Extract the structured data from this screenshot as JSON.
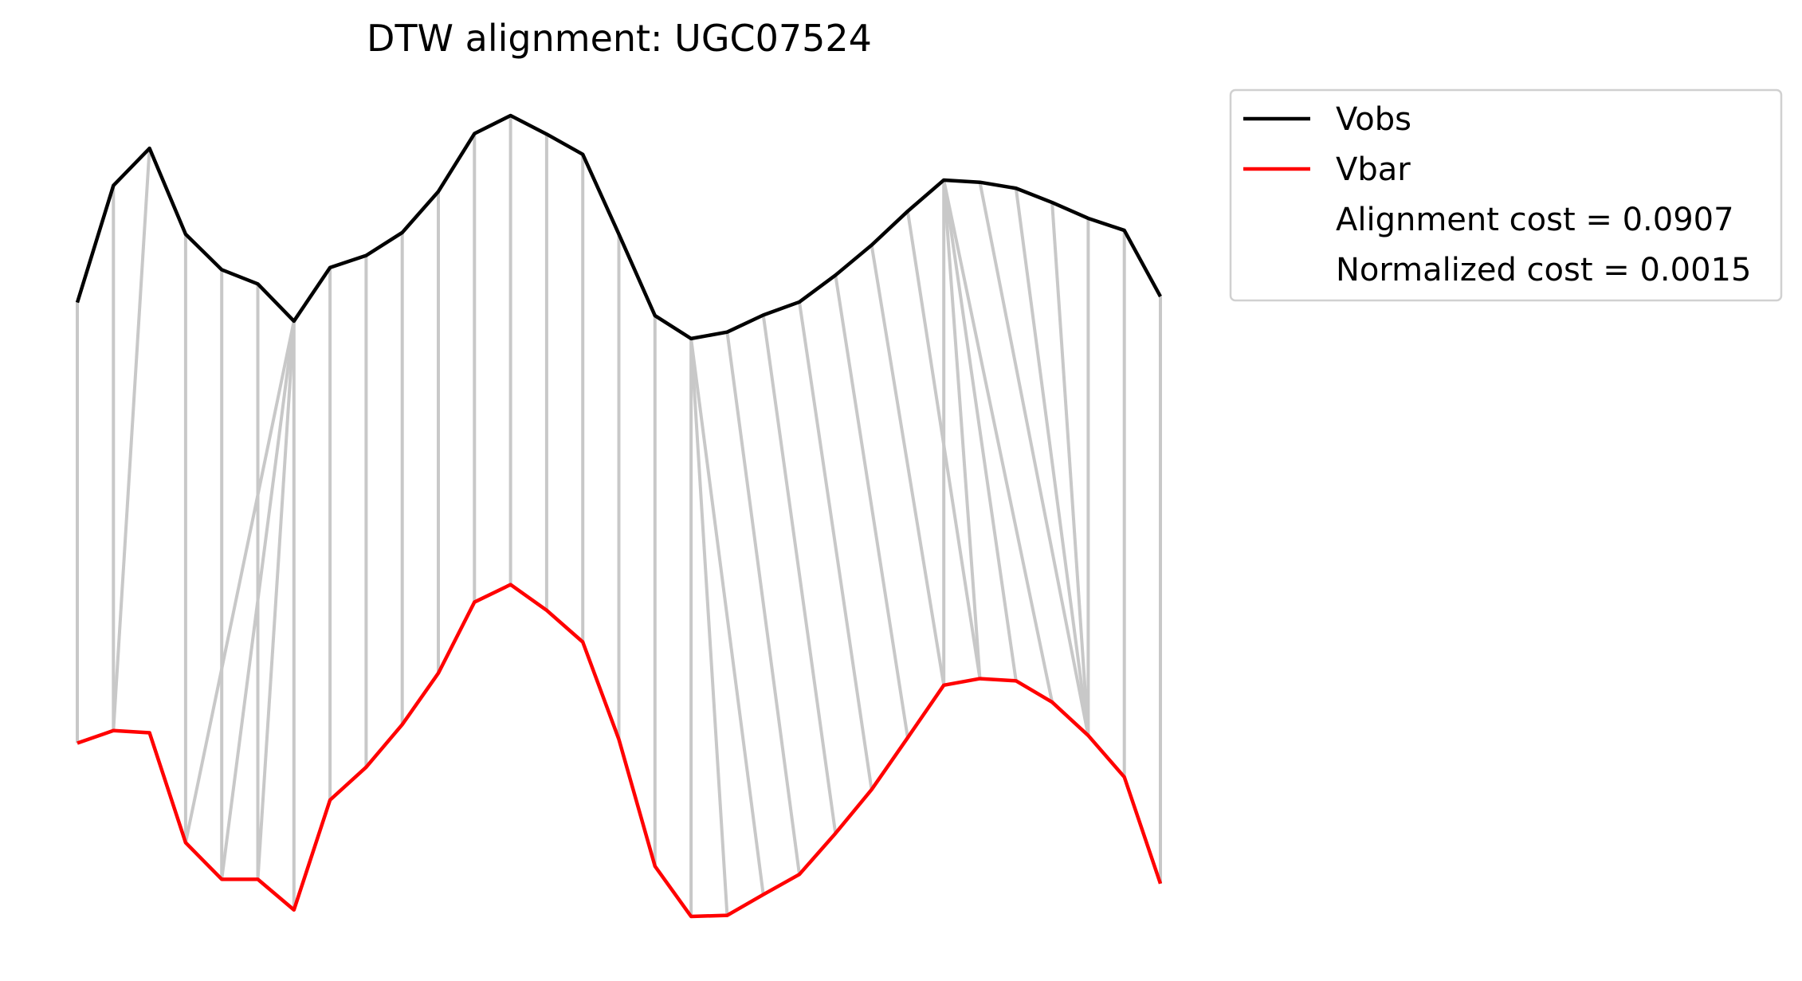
{
  "chart_data": {
    "type": "line",
    "title": "DTW alignment: UGC07524",
    "xlabel": "",
    "ylabel": "",
    "axes_visible": false,
    "grid": false,
    "legend_position": "upper right, outside plot",
    "x": [
      0,
      1,
      2,
      3,
      4,
      5,
      6,
      7,
      8,
      9,
      10,
      11,
      12,
      13,
      14,
      15,
      16,
      17,
      18,
      19,
      20,
      21,
      22,
      23,
      24,
      25,
      26,
      27,
      28,
      29,
      30
    ],
    "series": [
      {
        "name": "Vobs",
        "color": "#000000",
        "values": [
          0.592,
          0.806,
          0.874,
          0.717,
          0.652,
          0.626,
          0.558,
          0.656,
          0.678,
          0.72,
          0.795,
          0.901,
          0.934,
          0.9,
          0.863,
          0.717,
          0.568,
          0.526,
          0.538,
          0.569,
          0.593,
          0.642,
          0.697,
          0.759,
          0.816,
          0.812,
          0.801,
          0.775,
          0.746,
          0.724,
          0.603
        ]
      },
      {
        "name": "Vbar",
        "color": "#ff0000",
        "values": [
          -0.214,
          -0.191,
          -0.195,
          -0.396,
          -0.463,
          -0.463,
          -0.519,
          -0.318,
          -0.258,
          -0.18,
          -0.086,
          0.044,
          0.076,
          0.029,
          -0.029,
          -0.207,
          -0.439,
          -0.531,
          -0.529,
          -0.491,
          -0.454,
          -0.379,
          -0.299,
          -0.204,
          -0.108,
          -0.096,
          -0.1,
          -0.139,
          -0.2,
          -0.276,
          -0.471
        ]
      }
    ],
    "alignment_pairs": [
      [
        0,
        0
      ],
      [
        1,
        1
      ],
      [
        2,
        1
      ],
      [
        3,
        3
      ],
      [
        4,
        4
      ],
      [
        5,
        5
      ],
      [
        6,
        3
      ],
      [
        6,
        4
      ],
      [
        6,
        5
      ],
      [
        6,
        6
      ],
      [
        7,
        7
      ],
      [
        8,
        8
      ],
      [
        9,
        9
      ],
      [
        10,
        10
      ],
      [
        11,
        11
      ],
      [
        12,
        12
      ],
      [
        13,
        13
      ],
      [
        14,
        14
      ],
      [
        15,
        15
      ],
      [
        16,
        16
      ],
      [
        17,
        17
      ],
      [
        17,
        18
      ],
      [
        17,
        19
      ],
      [
        18,
        20
      ],
      [
        19,
        21
      ],
      [
        20,
        22
      ],
      [
        21,
        23
      ],
      [
        22,
        24
      ],
      [
        23,
        25
      ],
      [
        24,
        24
      ],
      [
        24,
        25
      ],
      [
        24,
        26
      ],
      [
        24,
        27
      ],
      [
        25,
        28
      ],
      [
        26,
        28
      ],
      [
        27,
        28
      ],
      [
        28,
        28
      ],
      [
        29,
        29
      ],
      [
        30,
        30
      ]
    ],
    "alignment_color": "#c8c8c8",
    "legend": {
      "entries": [
        {
          "label": "Vobs",
          "color": "#000000"
        },
        {
          "label": "Vbar",
          "color": "#ff0000"
        },
        {
          "label": "Alignment cost = 0.0907"
        },
        {
          "label": "Normalized cost = 0.0015"
        }
      ]
    }
  }
}
